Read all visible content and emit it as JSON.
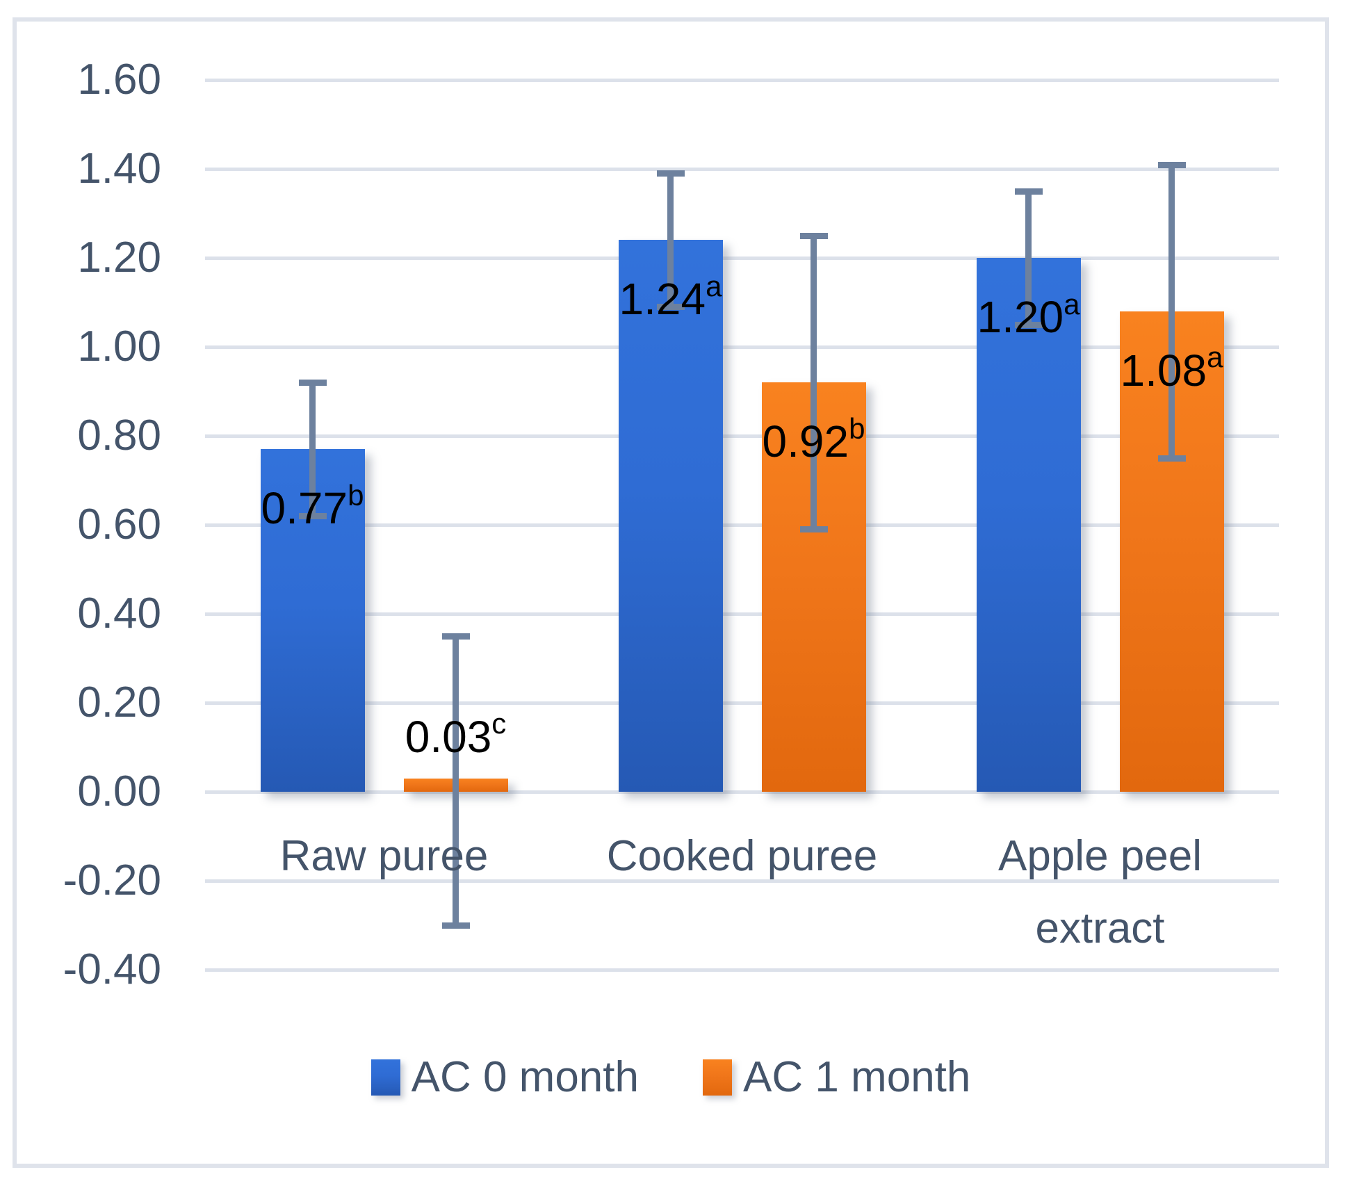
{
  "chart_data": {
    "type": "bar",
    "title": "",
    "categories": [
      "Raw puree",
      "Cooked puree",
      "Apple peel extract"
    ],
    "series": [
      {
        "name": "AC 0 month",
        "fill_top": "#3272db",
        "fill_mid": "#2f6cd4",
        "fill_bottom": "#2559b4",
        "values": [
          0.77,
          1.24,
          1.2
        ],
        "labels": [
          {
            "value": "0.77",
            "sup": "b"
          },
          {
            "value": "1.24",
            "sup": "a"
          },
          {
            "value": "1.20",
            "sup": "a"
          }
        ],
        "error_low": [
          0.62,
          1.09,
          1.05
        ],
        "error_high": [
          0.92,
          1.39,
          1.35
        ]
      },
      {
        "name": "AC 1 month",
        "fill_top": "#f9821f",
        "fill_mid": "#f0761a",
        "fill_bottom": "#e2680e",
        "values": [
          0.03,
          0.92,
          1.08
        ],
        "labels": [
          {
            "value": "0.03",
            "sup": "c"
          },
          {
            "value": "0.92",
            "sup": "b"
          },
          {
            "value": "1.08",
            "sup": "a"
          }
        ],
        "error_low": [
          -0.3,
          0.59,
          0.75
        ],
        "error_high": [
          0.35,
          1.25,
          1.41
        ]
      }
    ],
    "y_axis": {
      "min": -0.4,
      "max": 1.6,
      "step": 0.2,
      "tick_labels": [
        "1.60",
        "1.40",
        "1.20",
        "1.00",
        "0.80",
        "0.60",
        "0.40",
        "0.20",
        "0.00",
        "-0.20",
        "-0.40"
      ]
    },
    "grid": true,
    "legend_position": "bottom",
    "style": {
      "grid_color": "#dce1ea",
      "axis_text_color": "#44546a",
      "error_bar_color": "#6d819e",
      "frame_color": "#dfe3eb",
      "data_label_color": "#000000"
    }
  }
}
